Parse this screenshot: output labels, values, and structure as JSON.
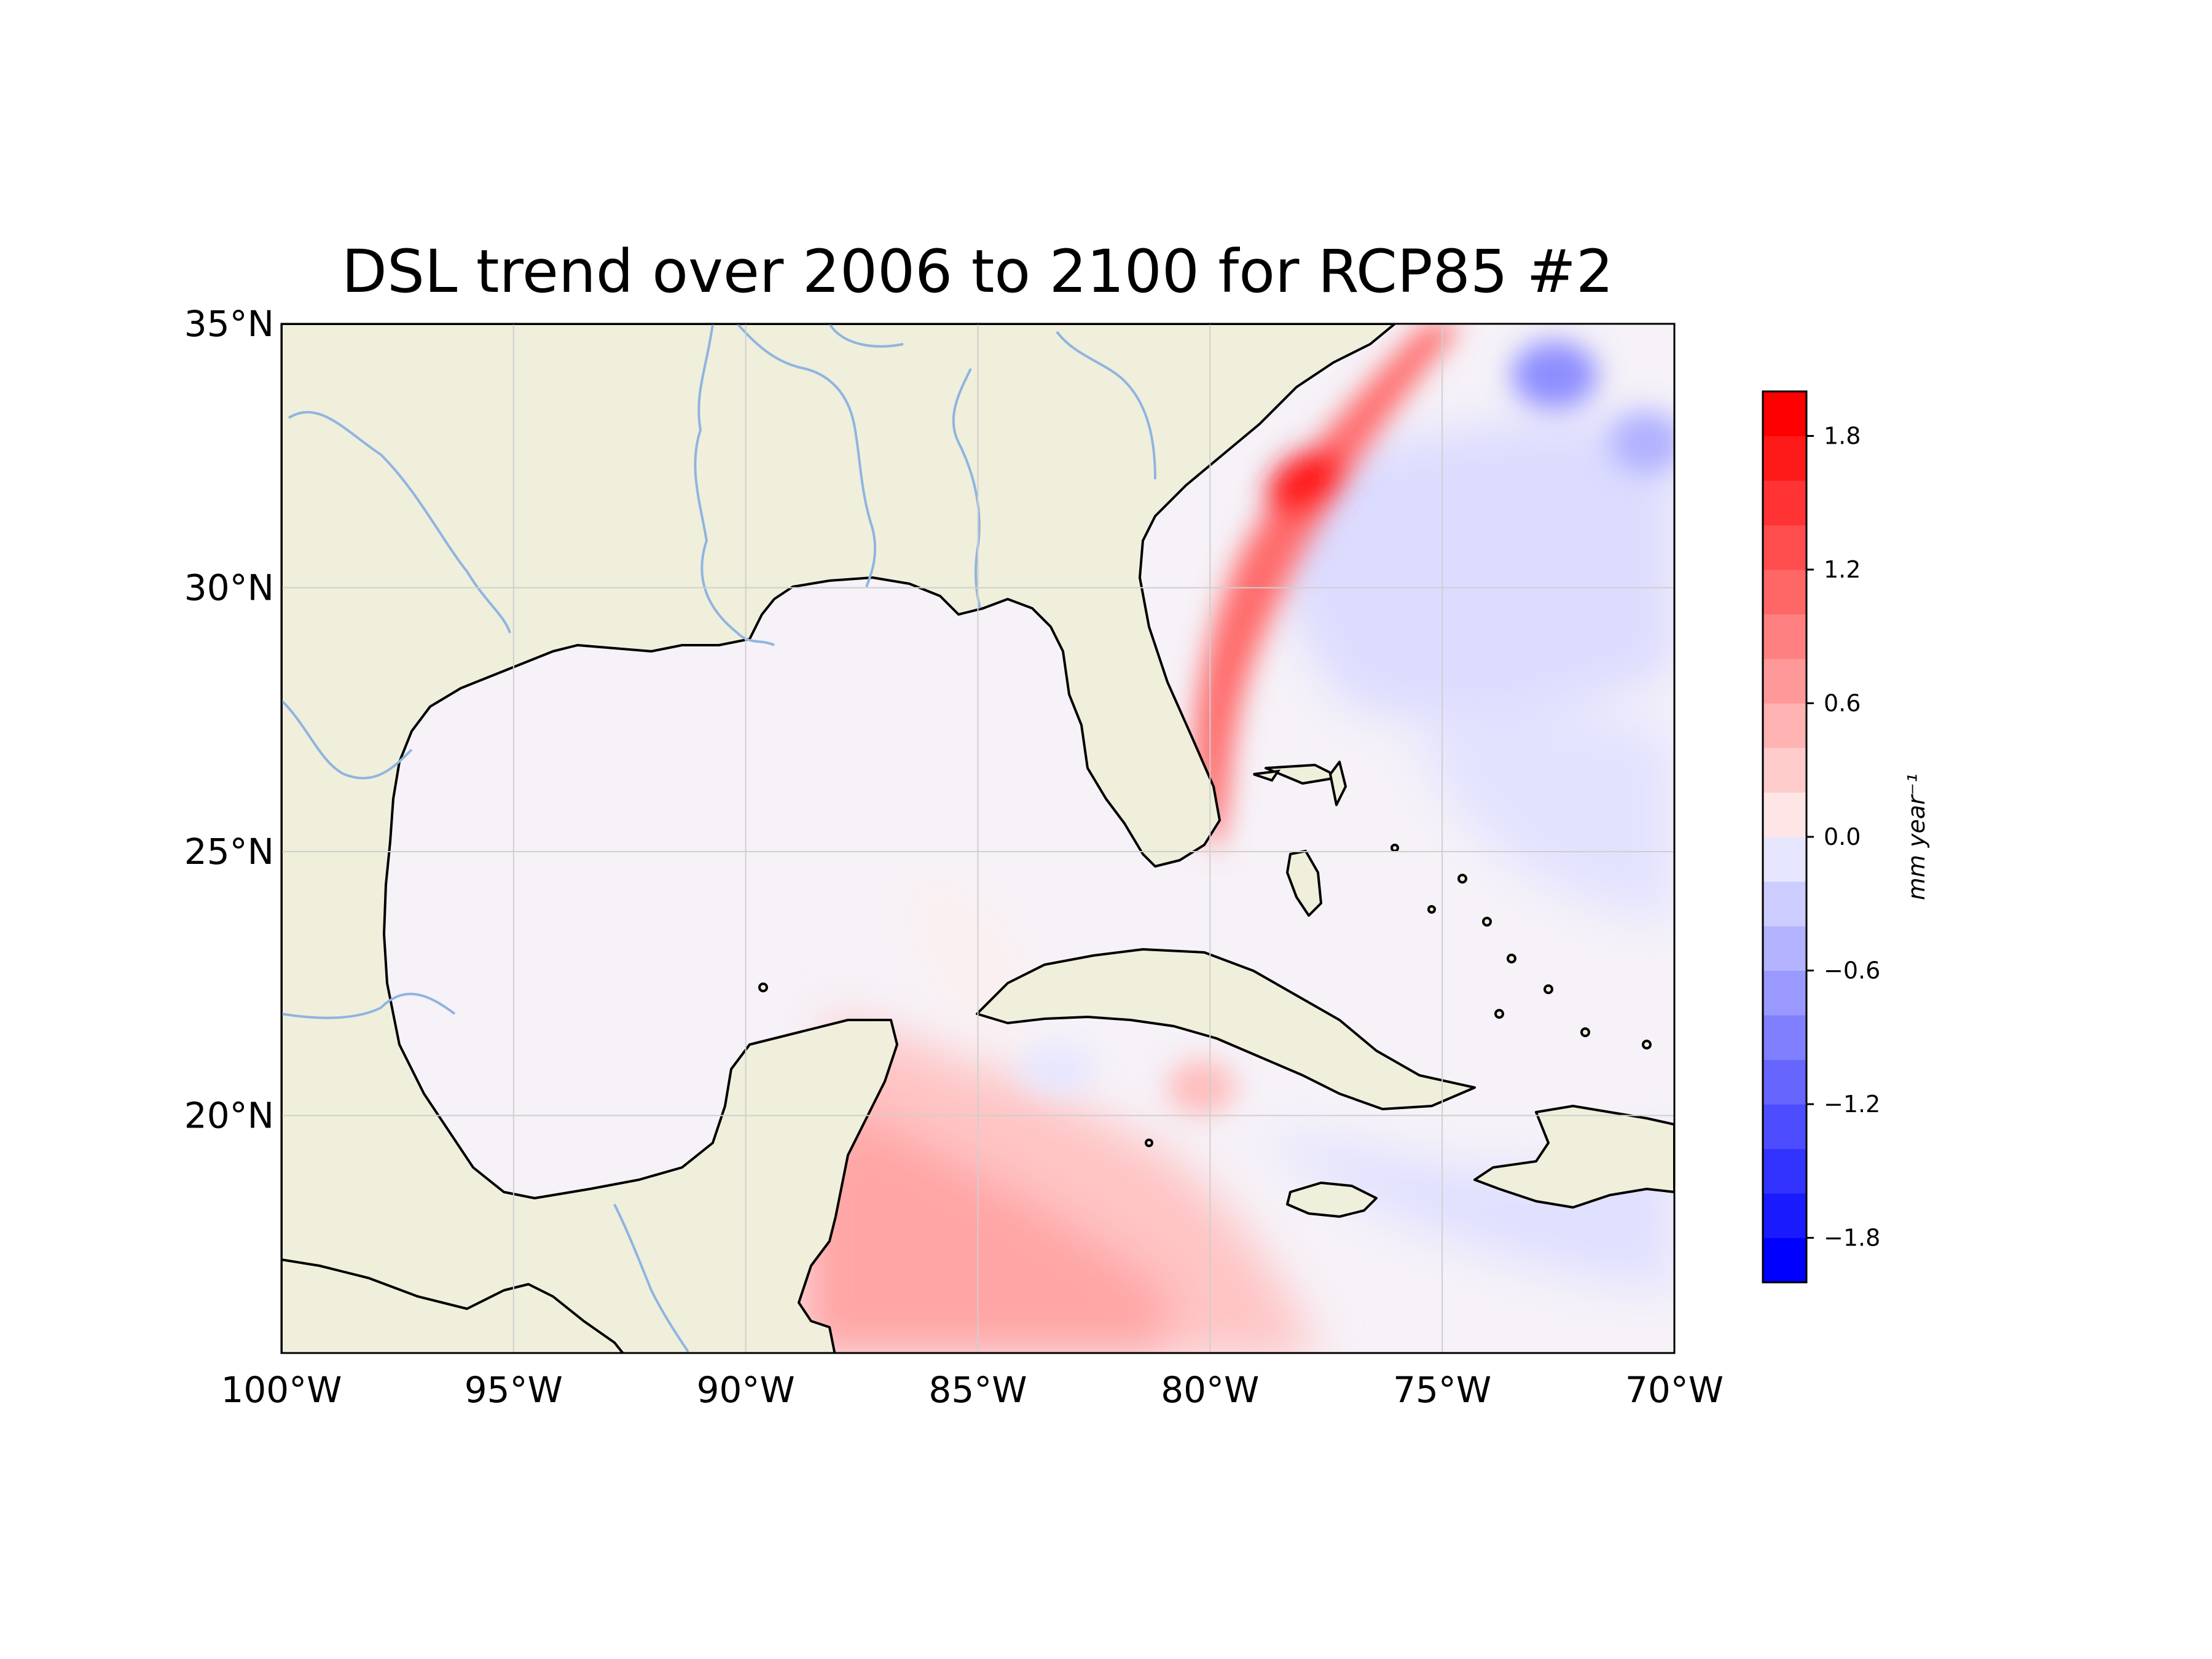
{
  "figure": {
    "title": "DSL trend over 2006 to 2100 for RCP85 #2"
  },
  "map": {
    "projection": "PlateCarree",
    "lon_range": [
      -100,
      -70
    ],
    "lat_range": [
      15.5,
      35
    ],
    "lon_ticks": [
      {
        "value": -100,
        "label": "100°W"
      },
      {
        "value": -95,
        "label": "95°W"
      },
      {
        "value": -90,
        "label": "90°W"
      },
      {
        "value": -85,
        "label": "85°W"
      },
      {
        "value": -80,
        "label": "80°W"
      },
      {
        "value": -75,
        "label": "75°W"
      },
      {
        "value": -70,
        "label": "70°W"
      }
    ],
    "lat_ticks": [
      {
        "value": 35,
        "label": "35°N"
      },
      {
        "value": 30,
        "label": "30°N"
      },
      {
        "value": 25,
        "label": "25°N"
      },
      {
        "value": 20,
        "label": "20°N"
      }
    ],
    "colors": {
      "land": "#efefdb",
      "coast": "#000000",
      "rivers": "#8fb4e0",
      "grid": "#cfcfcf"
    }
  },
  "colorbar": {
    "label": "mm year⁻¹",
    "vmin": -2.0,
    "vmax": 2.0,
    "levels": [
      -2.0,
      -1.8,
      -1.6,
      -1.4,
      -1.2,
      -1.0,
      -0.8,
      -0.6,
      -0.4,
      -0.2,
      0.0,
      0.2,
      0.4,
      0.6,
      0.8,
      1.0,
      1.2,
      1.4,
      1.6,
      1.8,
      2.0
    ],
    "colors": [
      "#0000ff",
      "#1a1aff",
      "#3333ff",
      "#4d4dff",
      "#6666ff",
      "#8080ff",
      "#9999ff",
      "#b3b3ff",
      "#ccccff",
      "#e6e6ff",
      "#ffe6e6",
      "#ffcccc",
      "#ffb3b3",
      "#ff9999",
      "#ff8080",
      "#ff6666",
      "#ff4d4d",
      "#ff3333",
      "#ff1a1a",
      "#ff0000"
    ],
    "ticks": [
      {
        "value": 1.8,
        "label": "1.8"
      },
      {
        "value": 1.2,
        "label": "1.2"
      },
      {
        "value": 0.6,
        "label": "0.6"
      },
      {
        "value": 0.0,
        "label": "0.0"
      },
      {
        "value": -0.6,
        "label": "−0.6"
      },
      {
        "value": -1.2,
        "label": "−1.2"
      },
      {
        "value": -1.8,
        "label": "−1.8"
      }
    ]
  }
}
